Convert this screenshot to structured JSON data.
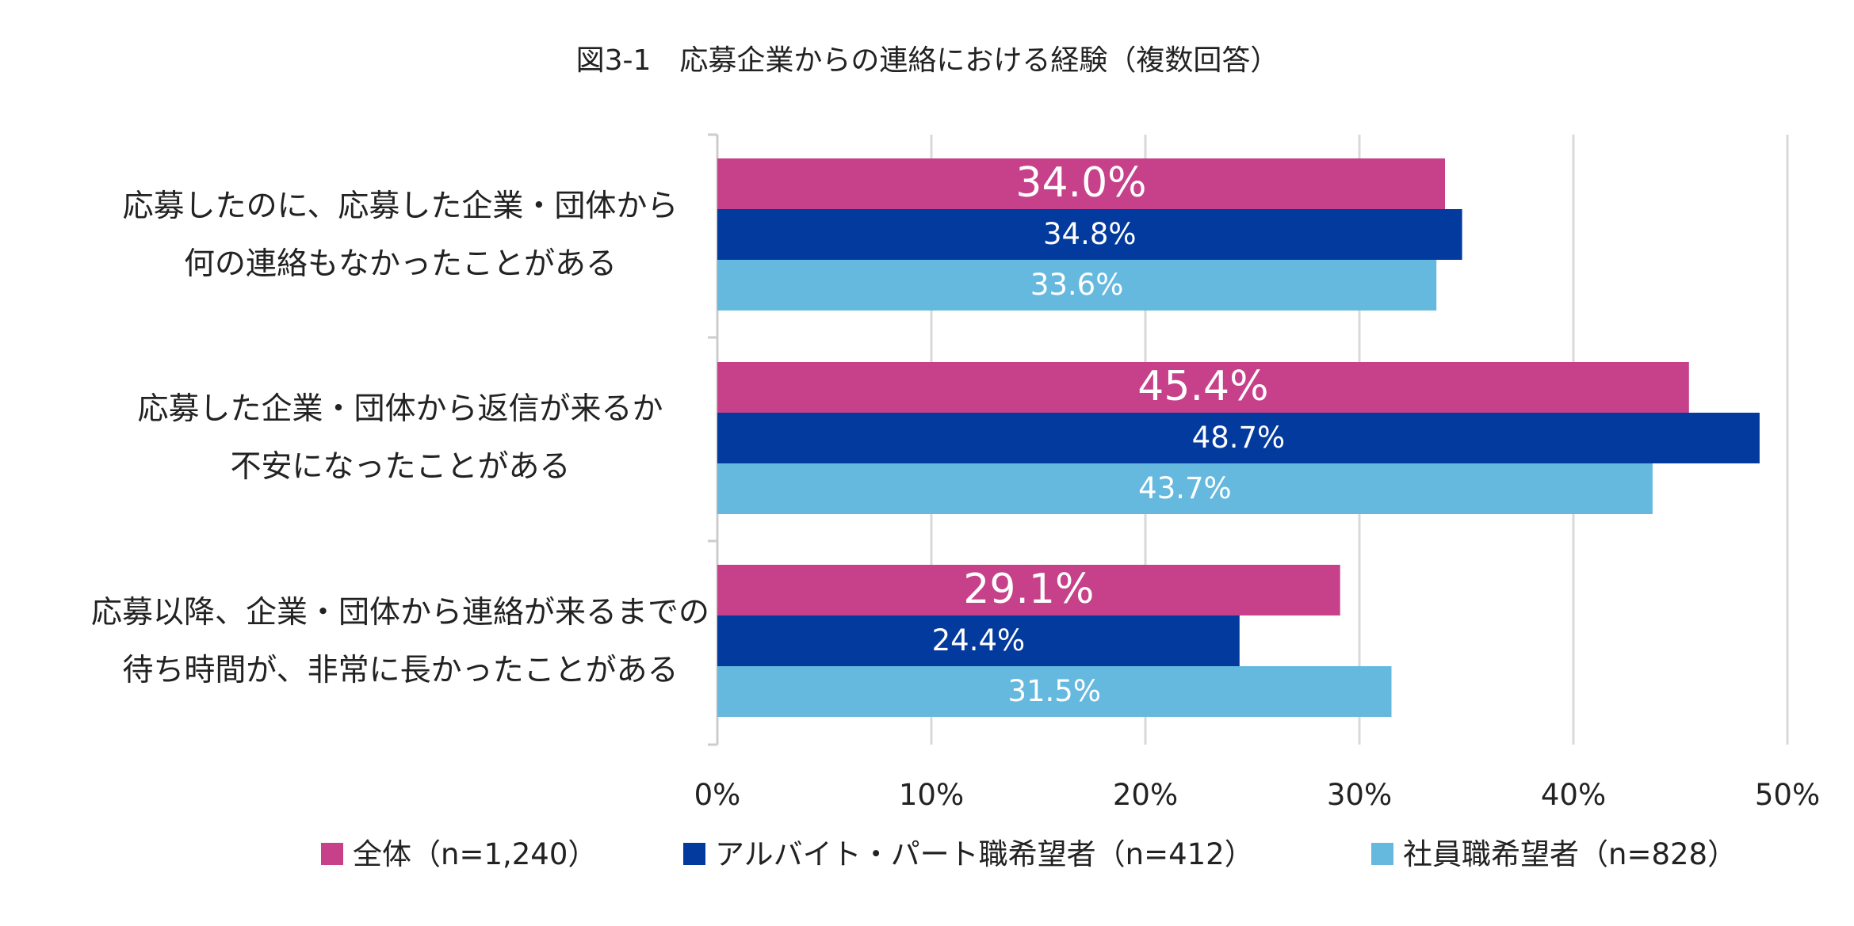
{
  "chart_data": {
    "type": "bar",
    "orientation": "horizontal",
    "title": "図3-1　応募企業からの連絡における経験（複数回答）",
    "categories": [
      [
        "応募したのに、応募した企業・団体から",
        "何の連絡もなかったことがある"
      ],
      [
        "応募した企業・団体から返信が来るか",
        "不安になったことがある"
      ],
      [
        "応募以降、企業・団体から連絡が来るまでの",
        "待ち時間が、非常に長かったことがある"
      ]
    ],
    "series": [
      {
        "name": "全体（n=1,240）",
        "color": "#c6418a",
        "values": [
          34.0,
          45.4,
          29.1
        ],
        "labels": [
          "34.0%",
          "45.4%",
          "29.1%"
        ]
      },
      {
        "name": "アルバイト・パート職希望者（n=412）",
        "color": "#033a9e",
        "values": [
          34.8,
          48.7,
          24.4
        ],
        "labels": [
          "34.8%",
          "48.7%",
          "24.4%"
        ]
      },
      {
        "name": "社員職希望者（n=828）",
        "color": "#65b9df",
        "values": [
          33.6,
          43.7,
          31.5
        ],
        "labels": [
          "33.6%",
          "43.7%",
          "31.5%"
        ]
      }
    ],
    "xlim": [
      0,
      50
    ],
    "xticks": [
      0,
      10,
      20,
      30,
      40,
      50
    ],
    "xtick_labels": [
      "0%",
      "10%",
      "20%",
      "30%",
      "40%",
      "50%"
    ],
    "grid": true,
    "legend_position": "bottom"
  }
}
